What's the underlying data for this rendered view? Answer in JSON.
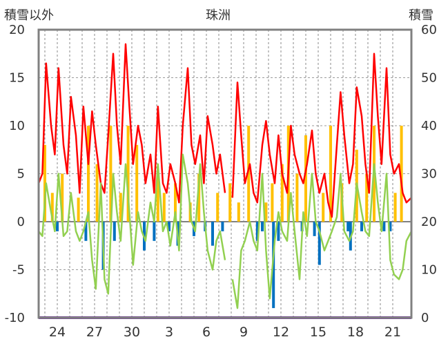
{
  "chart_data": {
    "type": "line",
    "title": "珠洲",
    "y_left_label": "積雪以外",
    "y_right_label": "積雪",
    "y_left_ticks": [
      "20",
      "15",
      "10",
      "5",
      "0",
      "-5",
      "-10"
    ],
    "y_right_ticks": [
      "60",
      "50",
      "40",
      "30",
      "20",
      "10",
      "0"
    ],
    "x_tick_labels": [
      "24",
      "27",
      "30",
      "3",
      "6",
      "9",
      "12",
      "15",
      "18",
      "21"
    ],
    "ylim_left": [
      -10,
      20
    ],
    "ylim_right": [
      0,
      60
    ],
    "x_range_days": [
      0,
      30
    ],
    "grid": true,
    "colors": {
      "temperature_max": "#ff0000",
      "temperature_min": "#92d050",
      "precipitation_positive": "#ffc000",
      "precipitation_negative": "#0070c0",
      "snow_depth": "#7030a0",
      "frame": "#808080"
    },
    "series": [
      {
        "role": "max-temp",
        "axis": "left",
        "x": [
          0,
          0.3,
          0.6,
          1.0,
          1.3,
          1.6,
          2.0,
          2.3,
          2.6,
          3.0,
          3.3,
          3.6,
          4.0,
          4.3,
          4.6,
          5.0,
          5.3,
          5.6,
          6.0,
          6.3,
          6.6,
          7.0,
          7.3,
          7.6,
          8.0,
          8.3,
          8.6,
          9.0,
          9.3,
          9.6,
          10.0,
          10.3,
          10.6,
          11.0,
          11.3,
          11.6,
          12.0,
          12.3,
          12.6,
          13.0,
          13.3,
          13.6,
          14.0,
          14.3,
          14.6,
          15.0,
          15.3,
          15.6,
          16.0,
          16.3,
          16.6,
          17.0,
          17.3,
          17.6,
          18.0,
          18.3,
          18.6,
          19.0,
          19.3,
          19.6,
          20.0,
          20.3,
          20.6,
          21.0,
          21.3,
          21.6,
          22.0,
          22.3,
          22.6,
          23.0,
          23.3,
          23.6,
          24.0,
          24.3,
          24.6,
          25.0,
          25.3,
          25.6,
          26.0,
          26.3,
          26.6,
          27.0,
          27.3,
          27.6,
          28.0,
          28.3,
          28.6,
          29.0,
          29.3,
          29.6,
          30.0
        ],
        "values": [
          4.0,
          5.0,
          16.5,
          10.0,
          7.0,
          16.0,
          8.0,
          5.0,
          13.0,
          9.0,
          3.0,
          12.0,
          6.0,
          11.5,
          8.0,
          4.0,
          3.0,
          9.0,
          17.5,
          10.0,
          6.0,
          18.5,
          12.0,
          6.0,
          10.0,
          8.0,
          4.0,
          7.0,
          3.0,
          12.0,
          4.0,
          3.0,
          6.0,
          4.0,
          2.0,
          10.0,
          16.0,
          8.0,
          6.0,
          9.0,
          4.0,
          11.0,
          8.0,
          5.0,
          7.0,
          3.0,
          null,
          2.5,
          14.5,
          9.0,
          4.0,
          6.0,
          3.0,
          2.0,
          8.0,
          10.5,
          7.0,
          4.0,
          9.0,
          5.0,
          3.0,
          10.0,
          7.0,
          5.0,
          4.0,
          6.0,
          9.5,
          5.0,
          3.0,
          5.0,
          2.0,
          0.5,
          8.0,
          13.5,
          9.0,
          4.0,
          6.0,
          14.0,
          11.0,
          6.0,
          3.0,
          17.5,
          11.0,
          6.0,
          16.0,
          7.0,
          5.0,
          6.0,
          3.0,
          2.0,
          2.5
        ]
      },
      {
        "role": "min-temp",
        "axis": "left",
        "x": [
          0,
          0.3,
          0.6,
          1.0,
          1.3,
          1.6,
          2.0,
          2.3,
          2.6,
          3.0,
          3.3,
          3.6,
          4.0,
          4.3,
          4.6,
          5.0,
          5.3,
          5.6,
          6.0,
          6.3,
          6.6,
          7.0,
          7.3,
          7.6,
          8.0,
          8.3,
          8.6,
          9.0,
          9.3,
          9.6,
          10.0,
          10.3,
          10.6,
          11.0,
          11.3,
          11.6,
          12.0,
          12.3,
          12.6,
          13.0,
          13.3,
          13.6,
          14.0,
          14.3,
          14.6,
          15.0,
          15.3,
          15.6,
          16.0,
          16.3,
          16.6,
          17.0,
          17.3,
          17.6,
          18.0,
          18.3,
          18.6,
          19.0,
          19.3,
          19.6,
          20.0,
          20.3,
          20.6,
          21.0,
          21.3,
          21.6,
          22.0,
          22.3,
          22.6,
          23.0,
          23.3,
          23.6,
          24.0,
          24.3,
          24.6,
          25.0,
          25.3,
          25.6,
          26.0,
          26.3,
          26.6,
          27.0,
          27.3,
          27.6,
          28.0,
          28.3,
          28.6,
          29.0,
          29.3,
          29.6,
          30.0
        ],
        "values": [
          -1.0,
          -1.5,
          4.0,
          1.0,
          -1.0,
          5.0,
          -1.5,
          -1.0,
          3.0,
          -1.0,
          -2.0,
          -1.0,
          1.0,
          -4.0,
          -7.0,
          4.0,
          -6.0,
          -7.5,
          5.0,
          1.0,
          -2.0,
          6.0,
          1.0,
          -4.5,
          1.0,
          -1.0,
          -2.0,
          2.0,
          0.0,
          6.0,
          -1.0,
          0.0,
          -2.5,
          1.0,
          -3.0,
          7.0,
          4.0,
          0.0,
          -1.0,
          6.0,
          1.0,
          -3.0,
          -5.0,
          -2.0,
          -1.0,
          -4.0,
          null,
          -6.0,
          -9.0,
          -3.0,
          -2.0,
          0.0,
          -2.0,
          -3.0,
          5.0,
          -3.0,
          -8.0,
          -2.0,
          1.0,
          -1.0,
          -2.0,
          3.0,
          -1.0,
          -6.0,
          1.0,
          -1.5,
          5.0,
          0.0,
          -1.0,
          -3.0,
          -2.0,
          -1.0,
          0.5,
          5.0,
          -1.0,
          -2.0,
          -1.0,
          4.0,
          1.0,
          -1.0,
          -1.5,
          6.0,
          2.0,
          -1.0,
          5.0,
          -4.0,
          -5.5,
          -6.0,
          -5.0,
          -2.0,
          -1.0
        ]
      },
      {
        "role": "snow-depth",
        "axis": "right",
        "x": [
          0,
          30
        ],
        "values": [
          0,
          0
        ]
      }
    ],
    "bars_positive": {
      "axis": "left",
      "x": [
        0.5,
        1.1,
        1.9,
        3.2,
        4.0,
        4.7,
        5.8,
        6.6,
        7.2,
        7.9,
        9.6,
        10.1,
        11.0,
        12.2,
        12.9,
        14.4,
        15.4,
        16.1,
        16.9,
        18.3,
        18.8,
        19.6,
        20.1,
        20.8,
        21.5,
        22.9,
        23.5,
        24.4,
        25.6,
        26.4,
        27.0,
        28.7,
        29.2
      ],
      "values": [
        8.0,
        3.0,
        5.0,
        2.5,
        10.0,
        6.0,
        10.0,
        3.0,
        10.0,
        8.0,
        5.0,
        3.0,
        4.0,
        2.0,
        5.0,
        3.0,
        4.0,
        2.0,
        10.0,
        2.0,
        4.0,
        6.0,
        10.0,
        5.0,
        9.0,
        3.0,
        10.0,
        4.0,
        7.5,
        5.0,
        10.0,
        3.0,
        10.0
      ]
    },
    "bars_negative": {
      "axis": "left",
      "x": [
        1.5,
        3.8,
        5.2,
        6.1,
        8.5,
        9.3,
        10.5,
        11.2,
        12.5,
        13.4,
        14.0,
        14.8,
        17.6,
        18.0,
        18.9,
        19.3,
        21.2,
        22.2,
        22.6,
        24.9,
        25.1,
        26.0,
        27.8,
        28.3
      ],
      "values": [
        -1.0,
        -2.0,
        -5.0,
        -2.0,
        -3.0,
        -2.0,
        -1.0,
        -2.5,
        -1.5,
        -1.0,
        -2.5,
        -1.0,
        -2.0,
        -1.0,
        -9.0,
        -2.0,
        -1.0,
        -1.5,
        -4.5,
        -1.0,
        -3.0,
        -1.0,
        -1.0,
        -1.0
      ]
    }
  }
}
